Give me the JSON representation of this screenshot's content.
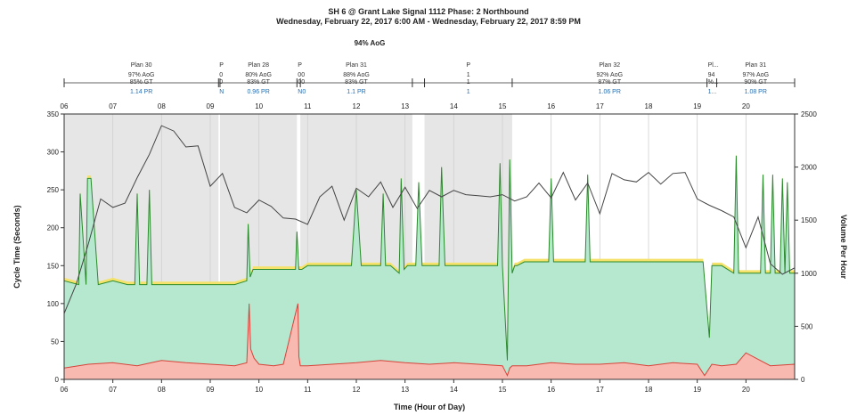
{
  "header": {
    "title": "SH 6 @ Grant Lake Signal 1112 Phase: 2 Northbound",
    "subtitle": "Wednesday, February 22, 2017 6:00 AM - Wednesday, February 22, 2017 8:59 PM",
    "overall_aog": "94% AoG"
  },
  "plans": [
    {
      "start": 6.0,
      "end": 9.17,
      "label": "Plan 30",
      "aog": "97% AoG",
      "gt": "85% GT",
      "pr": "1.14 PR",
      "shade": true
    },
    {
      "start": 9.17,
      "end": 9.2,
      "label": "P",
      "aog": "0",
      "gt": "0",
      "pr": "N",
      "shade": false
    },
    {
      "start": 9.2,
      "end": 10.78,
      "label": "Plan 28",
      "aog": "80% AoG",
      "gt": "83% GT",
      "pr": "0.96 PR",
      "shade": true
    },
    {
      "start": 10.78,
      "end": 10.85,
      "label": "P",
      "aog": "00",
      "gt": "00",
      "pr": "N0",
      "shade": false
    },
    {
      "start": 10.85,
      "end": 13.15,
      "label": "Plan 31",
      "aog": "88% AoG",
      "gt": "83% GT",
      "pr": "1.1 PR",
      "shade": true
    },
    {
      "start": 13.15,
      "end": 13.4,
      "label": "",
      "aog": "",
      "gt": "",
      "pr": "",
      "shade": false
    },
    {
      "start": 13.4,
      "end": 15.2,
      "label": "P",
      "aog": "1",
      "gt": "1",
      "pr": "1",
      "shade": true
    },
    {
      "start": 15.2,
      "end": 19.2,
      "label": "Plan 32",
      "aog": "92% AoG",
      "gt": "87% GT",
      "pr": "1.06 PR",
      "shade": false
    },
    {
      "start": 19.2,
      "end": 19.4,
      "label": "Pl...",
      "aog": "94",
      "gt": "%...",
      "pr": "1...",
      "shade": false
    },
    {
      "start": 19.4,
      "end": 21.0,
      "label": "Plan 31",
      "aog": "97% AoG",
      "gt": "90% GT",
      "pr": "1.08 PR",
      "shade": false
    }
  ],
  "chart_data": {
    "type": "area",
    "title": "SH 6 @ Grant Lake Signal 1112 Phase: 2 Northbound",
    "xlabel": "Time (Hour of Day)",
    "ylabel": "Cycle Time (Seconds)",
    "y2label": "Volume Per Hour",
    "xlim": [
      6,
      21
    ],
    "ylim": [
      0,
      350
    ],
    "y2lim": [
      0,
      2500
    ],
    "x_ticks": [
      "06",
      "07",
      "08",
      "09",
      "10",
      "11",
      "12",
      "13",
      "14",
      "15",
      "16",
      "17",
      "18",
      "19",
      "20"
    ],
    "y_ticks": [
      0,
      50,
      100,
      150,
      200,
      250,
      300,
      350
    ],
    "y2_ticks": [
      0,
      500,
      1000,
      1500,
      2000,
      2500
    ],
    "colors": {
      "green_area": "#b6e8cf",
      "red_area": "#f8b9b0",
      "yellow": "#f5e26a",
      "green_line": "#2b8a2b",
      "red_line": "#d8433a",
      "volume_line": "#444444",
      "plan_shade": "#e6e6e6",
      "pr_text": "#2a6fb0"
    },
    "series": [
      {
        "name": "Volume Per Hour",
        "axis": "right",
        "x": [
          6.0,
          6.25,
          6.5,
          6.75,
          7.0,
          7.25,
          7.5,
          7.75,
          8.0,
          8.25,
          8.5,
          8.75,
          9.0,
          9.25,
          9.5,
          9.75,
          10.0,
          10.25,
          10.5,
          10.75,
          11.0,
          11.25,
          11.5,
          11.75,
          12.0,
          12.25,
          12.5,
          12.75,
          13.0,
          13.25,
          13.5,
          13.75,
          14.0,
          14.25,
          14.5,
          14.75,
          15.0,
          15.25,
          15.5,
          15.75,
          16.0,
          16.25,
          16.5,
          16.75,
          17.0,
          17.25,
          17.5,
          17.75,
          18.0,
          18.25,
          18.5,
          18.75,
          19.0,
          19.25,
          19.5,
          19.75,
          20.0,
          20.25,
          20.5,
          20.75,
          21.0
        ],
        "values": [
          620,
          900,
          1280,
          1700,
          1620,
          1660,
          1900,
          2120,
          2390,
          2340,
          2190,
          2200,
          1820,
          1940,
          1620,
          1570,
          1690,
          1630,
          1520,
          1510,
          1460,
          1720,
          1820,
          1500,
          1800,
          1720,
          1860,
          1620,
          1810,
          1610,
          1780,
          1720,
          1780,
          1740,
          1730,
          1720,
          1740,
          1680,
          1720,
          1850,
          1710,
          1950,
          1690,
          1850,
          1560,
          1940,
          1880,
          1860,
          1950,
          1840,
          1940,
          1950,
          1700,
          1640,
          1590,
          1530,
          1240,
          1530,
          1090,
          990,
          1050
        ]
      },
      {
        "name": "Green Max",
        "x": [
          6.0,
          6.3,
          6.33,
          6.45,
          6.48,
          6.55,
          6.7,
          7.0,
          7.3,
          7.45,
          7.5,
          7.55,
          7.7,
          7.75,
          7.8,
          8.0,
          8.5,
          8.75,
          9.0,
          9.5,
          9.75,
          9.78,
          9.82,
          9.88,
          9.95,
          10.05,
          10.3,
          10.5,
          10.75,
          10.78,
          10.82,
          10.88,
          11.0,
          11.5,
          11.9,
          12.0,
          12.1,
          12.5,
          12.55,
          12.6,
          12.7,
          12.88,
          12.92,
          12.98,
          13.05,
          13.22,
          13.28,
          13.35,
          13.7,
          13.75,
          13.82,
          13.95,
          14.5,
          14.9,
          14.95,
          15.0,
          15.1,
          15.15,
          15.2,
          15.25,
          15.3,
          15.45,
          15.95,
          16.0,
          16.05,
          16.2,
          16.7,
          16.75,
          16.8,
          17.0,
          17.5,
          18.0,
          18.5,
          19.0,
          19.12,
          19.25,
          19.3,
          19.5,
          19.75,
          19.8,
          19.85,
          20.0,
          20.3,
          20.35,
          20.4,
          20.5,
          20.55,
          20.6,
          20.7,
          20.75,
          20.8,
          20.85,
          20.9,
          21.0
        ],
        "values": [
          130,
          125,
          245,
          125,
          265,
          265,
          125,
          130,
          125,
          125,
          245,
          125,
          125,
          250,
          125,
          125,
          125,
          125,
          125,
          125,
          130,
          205,
          135,
          145,
          145,
          145,
          145,
          145,
          145,
          195,
          145,
          145,
          150,
          150,
          150,
          250,
          150,
          150,
          245,
          150,
          150,
          140,
          265,
          145,
          150,
          150,
          260,
          150,
          150,
          280,
          150,
          150,
          150,
          150,
          285,
          150,
          25,
          290,
          140,
          150,
          150,
          155,
          155,
          265,
          155,
          155,
          155,
          270,
          155,
          155,
          155,
          155,
          155,
          155,
          155,
          55,
          150,
          150,
          140,
          295,
          140,
          140,
          140,
          270,
          140,
          140,
          270,
          140,
          140,
          265,
          140,
          260,
          140,
          140
        ]
      },
      {
        "name": "Red Max",
        "x": [
          6.0,
          6.5,
          7.0,
          7.5,
          8.0,
          8.5,
          9.0,
          9.5,
          9.75,
          9.8,
          9.83,
          9.9,
          10.0,
          10.3,
          10.5,
          10.8,
          10.82,
          10.85,
          11.0,
          11.5,
          12.0,
          12.5,
          13.0,
          13.5,
          14.0,
          14.5,
          15.0,
          15.1,
          15.15,
          15.2,
          15.5,
          16.0,
          16.5,
          17.0,
          17.5,
          18.0,
          18.5,
          19.0,
          19.15,
          19.3,
          19.5,
          19.8,
          20.0,
          20.5,
          21.0
        ],
        "values": [
          15,
          20,
          22,
          18,
          25,
          22,
          20,
          18,
          22,
          100,
          40,
          28,
          20,
          18,
          20,
          100,
          30,
          18,
          18,
          20,
          22,
          25,
          22,
          20,
          22,
          20,
          18,
          5,
          15,
          18,
          18,
          22,
          20,
          20,
          22,
          18,
          22,
          20,
          5,
          20,
          18,
          20,
          35,
          18,
          20
        ]
      }
    ]
  }
}
